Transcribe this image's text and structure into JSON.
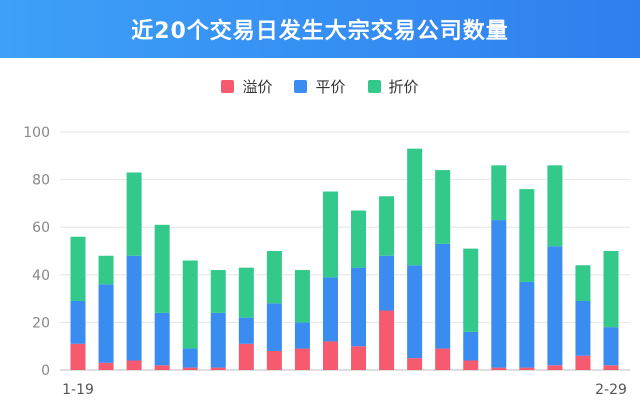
{
  "header": {
    "title": "近20个交易日发生大宗交易公司数量"
  },
  "legend": {
    "items": [
      {
        "label": "溢价",
        "color": "#f65a6f"
      },
      {
        "label": "平价",
        "color": "#3b8cf0"
      },
      {
        "label": "折价",
        "color": "#33c98a"
      }
    ]
  },
  "chart_data": {
    "type": "bar",
    "stacked": true,
    "title": "近20个交易日发生大宗交易公司数量",
    "x_start_label": "1-19",
    "x_end_label": "2-29",
    "ylim": [
      0,
      100
    ],
    "yticks": [
      0,
      20,
      40,
      60,
      80,
      100
    ],
    "grid": true,
    "legend_position": "top",
    "series": [
      {
        "name": "溢价",
        "color": "#f65a6f",
        "values": [
          11,
          3,
          4,
          2,
          1,
          1,
          11,
          8,
          9,
          12,
          10,
          25,
          5,
          9,
          4,
          1,
          1,
          2,
          6,
          2
        ]
      },
      {
        "name": "平价",
        "color": "#3b8cf0",
        "values": [
          18,
          33,
          44,
          22,
          8,
          23,
          11,
          20,
          11,
          27,
          33,
          23,
          39,
          44,
          12,
          62,
          36,
          50,
          23,
          16
        ]
      },
      {
        "name": "折价",
        "color": "#33c98a",
        "values": [
          27,
          12,
          35,
          37,
          37,
          18,
          21,
          22,
          22,
          36,
          24,
          25,
          49,
          31,
          35,
          23,
          39,
          34,
          15,
          32
        ]
      }
    ]
  }
}
